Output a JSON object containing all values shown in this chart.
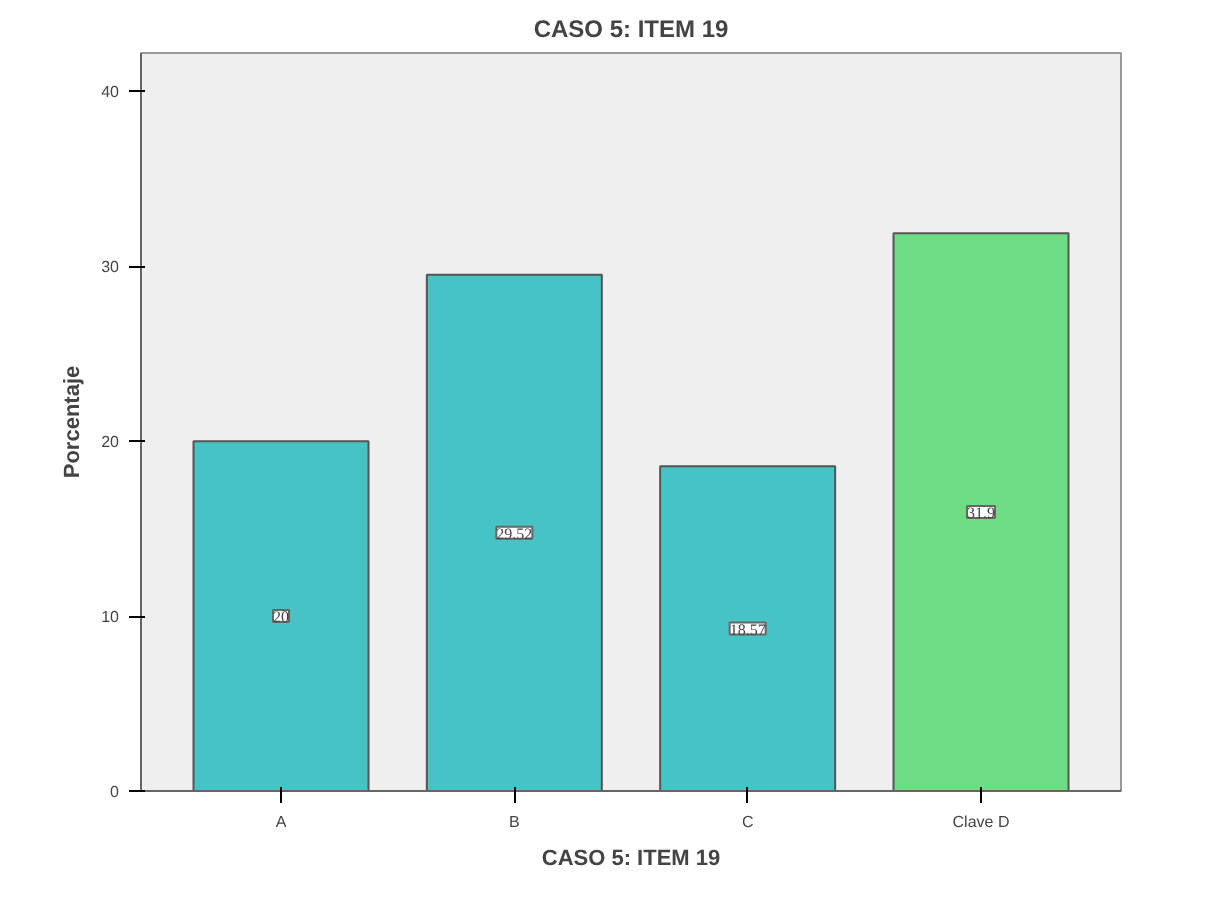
{
  "chart_data": {
    "type": "bar",
    "title": "CASO 5: ITEM 19",
    "xlabel": "CASO 5: ITEM 19",
    "ylabel": "Porcentaje",
    "categories": [
      "A",
      "B",
      "C",
      "Clave D"
    ],
    "values": [
      20,
      29.52,
      18.57,
      31.9
    ],
    "colors": [
      "#46c3c5",
      "#46c3c5",
      "#46c3c5",
      "#6edc82"
    ],
    "ylim": [
      0,
      42.2
    ],
    "yticks": [
      0,
      10,
      20,
      30,
      40
    ],
    "grid": false,
    "data_labels": true
  }
}
